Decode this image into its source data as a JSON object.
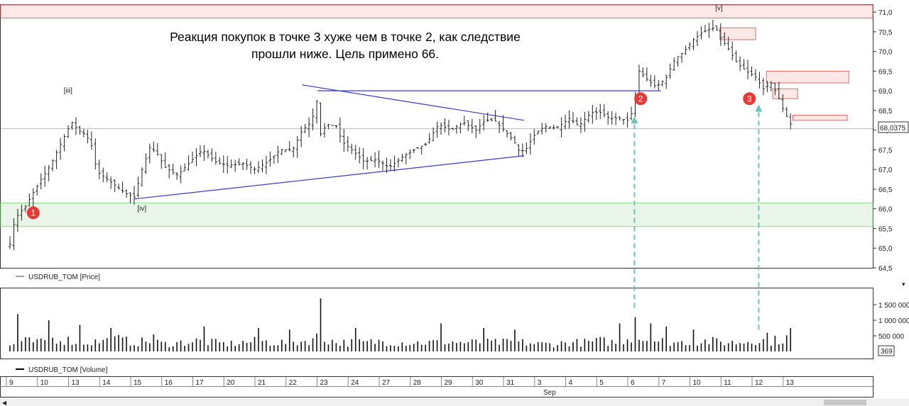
{
  "colors": {
    "candle": "#222222",
    "trendline": "#3a3ad0",
    "support_zone": "#e8f5e8",
    "support_border": "#8ed88e",
    "resistance_zone": "#fde8e8",
    "resistance_border": "#e06a6a",
    "arrow": "#6ec3b8",
    "marker": "#e53935",
    "last_price_line": "#bbbbbb"
  },
  "annotation": {
    "line1": "Реакция покупок в точке 3 хуже чем в точке 2, как следствие",
    "line2": "прошли ниже. Цель примено 66."
  },
  "legends": {
    "price": "USDRUB_TOM [Price]",
    "volume": "USDRUB_TOM [Volume]"
  },
  "last_price_label": "68,0375",
  "volume_last_label": "369",
  "month_label": "Sep",
  "chart_data": {
    "type": "ohlc",
    "title": "",
    "instrument": "USDRUB_TOM",
    "date_labels": [
      "9",
      "10",
      "13",
      "14",
      "15",
      "16",
      "17",
      "20",
      "21",
      "22",
      "23",
      "24",
      "27",
      "28",
      "29",
      "30",
      "31",
      "3",
      "4",
      "5",
      "6",
      "7",
      "10",
      "11",
      "12",
      "13"
    ],
    "y_tick_labels": [
      "71,0",
      "70,5",
      "70,0",
      "69,5",
      "69,0",
      "68,5",
      "68,0",
      "67,5",
      "67,0",
      "66,5",
      "66,0",
      "65,5",
      "65,0",
      "64,5"
    ],
    "y_ticks": [
      71.0,
      70.5,
      70.0,
      69.5,
      69.0,
      68.5,
      68.0,
      67.5,
      67.0,
      66.5,
      66.0,
      65.5,
      65.0,
      64.5
    ],
    "ylim": [
      64.5,
      71.2
    ],
    "last_price": 68.0375,
    "close_path": [
      [
        0,
        65.1
      ],
      [
        0.15,
        65.7
      ],
      [
        0.3,
        65.9
      ],
      [
        0.5,
        66.05
      ],
      [
        0.7,
        66.35
      ],
      [
        1.0,
        66.75
      ],
      [
        1.3,
        67.1
      ],
      [
        1.6,
        67.6
      ],
      [
        1.85,
        68.0
      ],
      [
        2.0,
        68.2
      ],
      [
        2.2,
        68.0
      ],
      [
        2.4,
        67.9
      ],
      [
        2.6,
        67.7
      ],
      [
        2.8,
        66.95
      ],
      [
        3.3,
        66.65
      ],
      [
        3.7,
        66.4
      ],
      [
        4.0,
        66.3
      ],
      [
        4.25,
        67.0
      ],
      [
        4.5,
        67.55
      ],
      [
        4.7,
        67.45
      ],
      [
        5.0,
        67.05
      ],
      [
        5.4,
        66.85
      ],
      [
        5.8,
        67.2
      ],
      [
        6.2,
        67.5
      ],
      [
        6.6,
        67.2
      ],
      [
        7.0,
        67.1
      ],
      [
        7.5,
        67.15
      ],
      [
        7.9,
        67.0
      ],
      [
        8.3,
        67.2
      ],
      [
        8.7,
        67.5
      ],
      [
        9.1,
        67.5
      ],
      [
        9.4,
        68.0
      ],
      [
        9.7,
        68.2
      ],
      [
        9.9,
        68.8
      ],
      [
        10.0,
        67.9
      ],
      [
        10.2,
        68.15
      ],
      [
        10.5,
        68.1
      ],
      [
        10.7,
        67.7
      ],
      [
        11.0,
        67.5
      ],
      [
        11.4,
        67.2
      ],
      [
        11.8,
        67.25
      ],
      [
        12.2,
        67.05
      ],
      [
        12.6,
        67.3
      ],
      [
        13.0,
        67.5
      ],
      [
        13.4,
        67.65
      ],
      [
        13.8,
        68.15
      ],
      [
        14.2,
        68.0
      ],
      [
        14.6,
        68.2
      ],
      [
        15.0,
        68.0
      ],
      [
        15.3,
        68.25
      ],
      [
        15.6,
        68.25
      ],
      [
        15.9,
        68.0
      ],
      [
        16.2,
        67.75
      ],
      [
        16.4,
        67.45
      ],
      [
        16.6,
        67.5
      ],
      [
        16.85,
        67.85
      ],
      [
        17.2,
        68.1
      ],
      [
        17.6,
        68.05
      ],
      [
        18.0,
        68.3
      ],
      [
        18.3,
        68.1
      ],
      [
        18.7,
        68.45
      ],
      [
        19.0,
        68.45
      ],
      [
        19.3,
        68.3
      ],
      [
        19.6,
        68.3
      ],
      [
        19.9,
        68.25
      ],
      [
        20.05,
        68.5
      ],
      [
        20.25,
        69.5
      ],
      [
        20.5,
        69.3
      ],
      [
        20.8,
        69.1
      ],
      [
        21.1,
        69.3
      ],
      [
        21.4,
        69.8
      ],
      [
        21.7,
        70.0
      ],
      [
        22.0,
        70.3
      ],
      [
        22.3,
        70.5
      ],
      [
        22.6,
        70.6
      ],
      [
        22.75,
        70.55
      ],
      [
        22.9,
        70.3
      ],
      [
        23.1,
        70.1
      ],
      [
        23.4,
        69.7
      ],
      [
        23.7,
        69.5
      ],
      [
        24.0,
        69.35
      ],
      [
        24.25,
        69.05
      ],
      [
        24.5,
        69.2
      ],
      [
        24.7,
        68.9
      ],
      [
        24.9,
        68.5
      ],
      [
        25.1,
        68.2
      ],
      [
        25.2,
        68.0375
      ]
    ],
    "volume_path": [
      [
        0,
        0.2
      ],
      [
        0.5,
        0.35
      ],
      [
        1.0,
        0.3
      ],
      [
        1.5,
        0.45
      ],
      [
        2.0,
        0.35
      ],
      [
        2.5,
        0.3
      ],
      [
        3.0,
        0.35
      ],
      [
        3.5,
        0.4
      ],
      [
        4.0,
        0.3
      ],
      [
        4.5,
        0.35
      ],
      [
        5.0,
        0.25
      ],
      [
        5.5,
        0.3
      ],
      [
        6.0,
        0.35
      ],
      [
        6.5,
        0.3
      ],
      [
        7.0,
        0.25
      ],
      [
        7.5,
        0.3
      ],
      [
        8.0,
        0.35
      ],
      [
        8.5,
        0.3
      ],
      [
        9.0,
        0.3
      ],
      [
        9.5,
        0.35
      ],
      [
        10.0,
        0.5
      ],
      [
        10.5,
        0.3
      ],
      [
        11.0,
        0.3
      ],
      [
        11.5,
        0.3
      ],
      [
        12.0,
        0.35
      ],
      [
        12.5,
        0.3
      ],
      [
        13.0,
        0.3
      ],
      [
        13.5,
        0.3
      ],
      [
        14.0,
        0.35
      ],
      [
        14.5,
        0.3
      ],
      [
        15.0,
        0.3
      ],
      [
        15.5,
        0.3
      ],
      [
        16.0,
        0.3
      ],
      [
        16.5,
        0.3
      ],
      [
        17.0,
        0.25
      ],
      [
        17.5,
        0.25
      ],
      [
        18.0,
        0.3
      ],
      [
        18.5,
        0.3
      ],
      [
        19.0,
        0.35
      ],
      [
        19.5,
        0.3
      ],
      [
        20.0,
        0.5
      ],
      [
        20.5,
        0.4
      ],
      [
        21.0,
        0.35
      ],
      [
        21.5,
        0.3
      ],
      [
        22.0,
        0.35
      ],
      [
        22.5,
        0.35
      ],
      [
        23.0,
        0.3
      ],
      [
        23.5,
        0.3
      ],
      [
        24.0,
        0.4
      ],
      [
        24.5,
        0.35
      ],
      [
        25.0,
        0.45
      ],
      [
        25.2,
        0.4
      ]
    ],
    "volume_peaks": [
      [
        0.27,
        1.2
      ],
      [
        1.22,
        1.0
      ],
      [
        2.22,
        0.85
      ],
      [
        3.27,
        0.75
      ],
      [
        4.6,
        0.55
      ],
      [
        6.2,
        0.8
      ],
      [
        8.0,
        0.75
      ],
      [
        9.0,
        0.7
      ],
      [
        10.05,
        1.7
      ],
      [
        11.1,
        0.75
      ],
      [
        13.9,
        0.9
      ],
      [
        15.2,
        0.75
      ],
      [
        16.3,
        0.7
      ],
      [
        19.6,
        0.9
      ],
      [
        20.15,
        1.1
      ],
      [
        20.6,
        0.9
      ],
      [
        21.1,
        0.8
      ],
      [
        22.0,
        0.7
      ],
      [
        24.4,
        0.6
      ],
      [
        25.1,
        0.75
      ]
    ],
    "volume_tick_labels": [
      "1 500 000",
      "1 000 000",
      "500 000"
    ],
    "volume_ticks": [
      1.5,
      1.0,
      0.5
    ],
    "volume_ylim": [
      0,
      2.0
    ],
    "trendlines": [
      {
        "from": [
          4.0,
          66.25
        ],
        "to": [
          16.55,
          67.35
        ]
      },
      {
        "from": [
          9.4,
          69.15
        ],
        "to": [
          16.55,
          68.25
        ]
      },
      {
        "from": [
          9.9,
          69.0
        ],
        "to": [
          20.95,
          69.0
        ]
      }
    ],
    "support_zone": [
      65.55,
      66.15
    ],
    "resistance_top": 70.85,
    "resistance_boxes": [
      {
        "x": [
          22.85,
          24.0
        ],
        "y": [
          70.3,
          70.6
        ]
      },
      {
        "x": [
          24.35,
          27.0
        ],
        "y": [
          69.2,
          69.5
        ]
      },
      {
        "x": [
          24.55,
          25.35
        ],
        "y": [
          68.8,
          69.05
        ]
      },
      {
        "x": [
          25.2,
          26.95
        ],
        "y": [
          68.25,
          68.38
        ]
      }
    ],
    "wave_labels": [
      {
        "text": "[iii]",
        "x": 1.73,
        "y": 68.95
      },
      {
        "text": "[iv]",
        "x": 4.1,
        "y": 65.95
      },
      {
        "text": "[v]",
        "x": 22.7,
        "y": 71.05
      }
    ],
    "points": [
      {
        "label": "1",
        "x": 0.75,
        "y": 65.9
      },
      {
        "label": "2",
        "x": 20.3,
        "y": 68.8
      },
      {
        "label": "3",
        "x": 23.8,
        "y": 68.8
      }
    ],
    "arrows": [
      {
        "x": 20.1,
        "from_volume": 1.4,
        "to_price": 68.35
      },
      {
        "x": 24.1,
        "from_volume": 0.7,
        "to_price": 68.65
      }
    ]
  }
}
